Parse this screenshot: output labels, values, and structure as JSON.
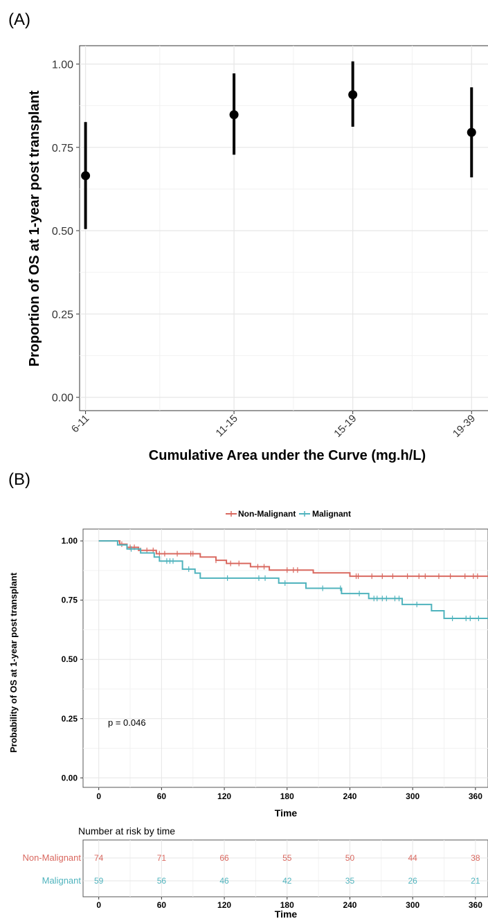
{
  "panel_a": {
    "label": "(A)",
    "xlabel": "Cumulative Area under the Curve (mg.h/L)",
    "ylabel": "Proportion of OS at 1-year post transplant"
  },
  "panel_b": {
    "label": "(B)",
    "ylabel": "Probability of OS at 1-year post transplant",
    "xlabel": "Time",
    "p_value": "p = 0.046",
    "legend": [
      "Non-Malignant",
      "Malignant"
    ]
  },
  "risk_table": {
    "title": "Number at risk by time",
    "xlabel": "Time"
  },
  "colors": {
    "non_malignant": "#d9685f",
    "malignant": "#4fb3bd",
    "point": "#000000",
    "grid": "#e6e6e6"
  },
  "chart_data": [
    {
      "type": "scatter",
      "panel": "A",
      "categories": [
        "6-11",
        "11-15",
        "15-19",
        "19-39"
      ],
      "x": [
        6,
        11,
        15,
        19
      ],
      "values": [
        0.665,
        0.848,
        0.908,
        0.795
      ],
      "ci_lower": [
        0.505,
        0.728,
        0.812,
        0.66
      ],
      "ci_upper": [
        0.826,
        0.972,
        1.008,
        0.93
      ],
      "xlim": [
        5.8,
        19.6
      ],
      "ylim": [
        -0.04,
        1.055
      ],
      "yticks": [
        0.0,
        0.25,
        0.5,
        0.75,
        1.0
      ],
      "ytick_labels": [
        "0.00",
        "0.25",
        "0.50",
        "0.75",
        "1.00"
      ],
      "xlabel": "Cumulative Area under the Curve (mg.h/L)",
      "ylabel": "Proportion of OS at 1-year post transplant",
      "grid": true
    },
    {
      "type": "line",
      "panel": "B",
      "subtype": "kaplan-meier step",
      "xlim": [
        -15,
        372
      ],
      "ylim": [
        -0.04,
        1.05
      ],
      "xticks": [
        0,
        60,
        120,
        180,
        240,
        300,
        360
      ],
      "yticks": [
        0.0,
        0.25,
        0.5,
        0.75,
        1.0
      ],
      "ytick_labels": [
        "0.00",
        "0.25",
        "0.50",
        "0.75",
        "1.00"
      ],
      "xlabel": "Time",
      "ylabel": "Probability of OS at 1-year post transplant",
      "legend_position": "top",
      "grid": true,
      "series": [
        {
          "name": "Non-Malignant",
          "color": "#d9685f",
          "steps": [
            [
              0,
              1.0
            ],
            [
              20,
              0.986
            ],
            [
              27,
              0.973
            ],
            [
              38,
              0.96
            ],
            [
              55,
              0.946
            ],
            [
              97,
              0.932
            ],
            [
              112,
              0.918
            ],
            [
              122,
              0.905
            ],
            [
              145,
              0.891
            ],
            [
              163,
              0.877
            ],
            [
              205,
              0.865
            ],
            [
              240,
              0.851
            ],
            [
              372,
              0.851
            ]
          ],
          "censor_times": [
            22,
            30,
            34,
            40,
            46,
            52,
            58,
            63,
            75,
            88,
            90,
            112,
            126,
            134,
            152,
            158,
            180,
            186,
            190,
            246,
            248,
            261,
            271,
            281,
            295,
            306,
            312,
            325,
            336,
            350,
            358,
            362
          ]
        },
        {
          "name": "Malignant",
          "color": "#4fb3bd",
          "steps": [
            [
              0,
              1.0
            ],
            [
              18,
              0.983
            ],
            [
              27,
              0.966
            ],
            [
              40,
              0.949
            ],
            [
              53,
              0.932
            ],
            [
              58,
              0.915
            ],
            [
              80,
              0.881
            ],
            [
              92,
              0.864
            ],
            [
              97,
              0.843
            ],
            [
              172,
              0.822
            ],
            [
              198,
              0.8
            ],
            [
              232,
              0.778
            ],
            [
              258,
              0.757
            ],
            [
              290,
              0.732
            ],
            [
              318,
              0.705
            ],
            [
              330,
              0.673
            ],
            [
              372,
              0.673
            ]
          ],
          "censor_times": [
            31,
            65,
            68,
            71,
            86,
            123,
            153,
            159,
            178,
            214,
            231,
            249,
            263,
            266,
            271,
            275,
            283,
            287,
            304,
            338,
            351,
            355,
            363
          ]
        }
      ]
    },
    {
      "type": "table",
      "panel": "B-risk",
      "title": "Number at risk by time",
      "times": [
        0,
        60,
        120,
        180,
        240,
        300,
        360
      ],
      "rows": [
        {
          "name": "Non-Malignant",
          "values": [
            74,
            71,
            66,
            55,
            50,
            44,
            38
          ]
        },
        {
          "name": "Malignant",
          "values": [
            59,
            56,
            46,
            42,
            35,
            26,
            21
          ]
        }
      ]
    }
  ]
}
